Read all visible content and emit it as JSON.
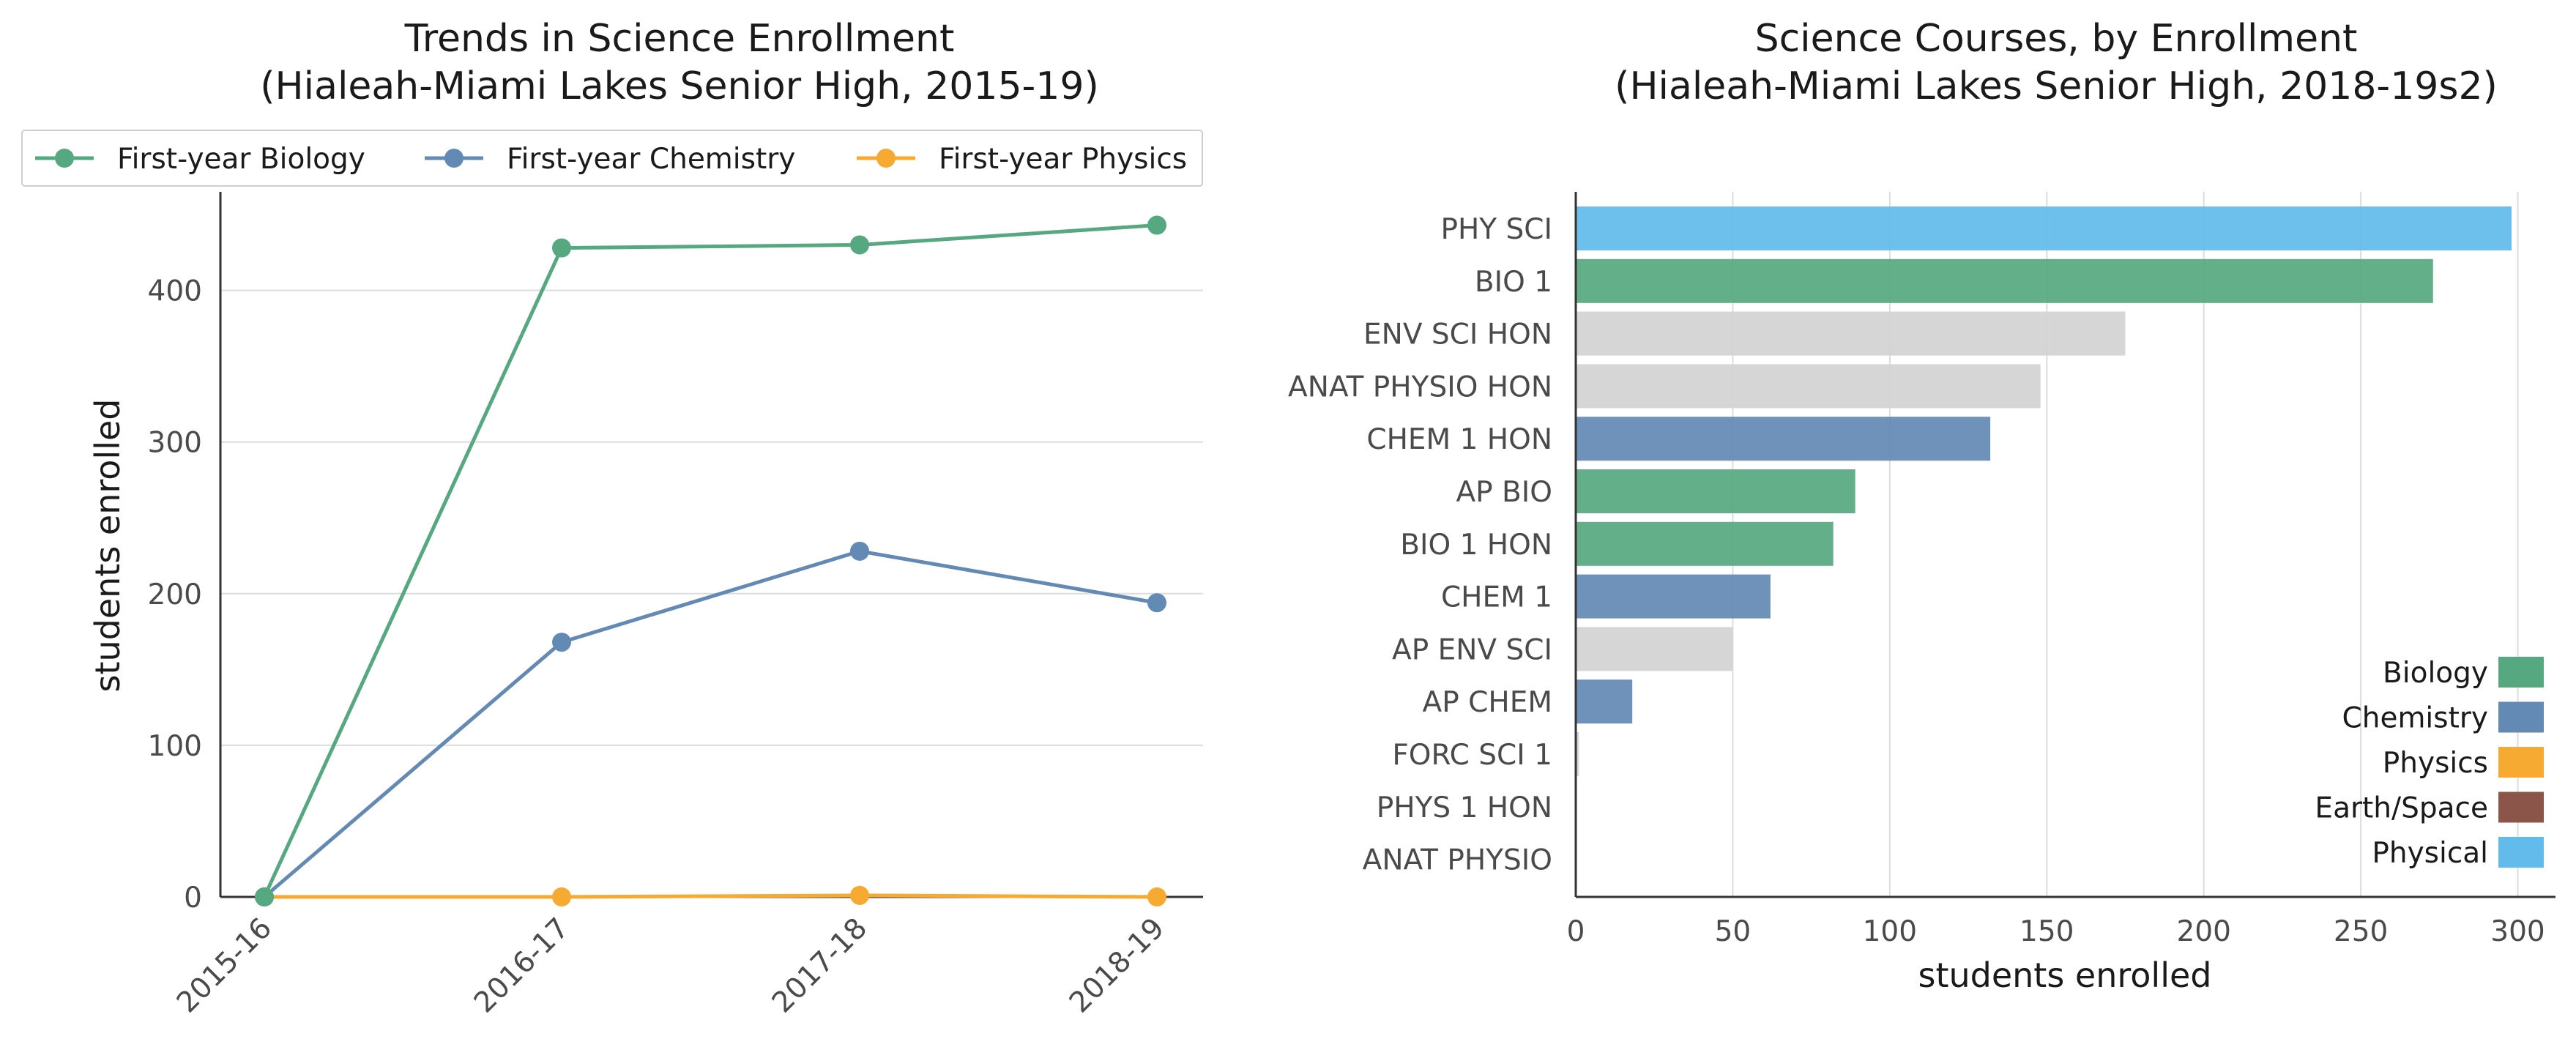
{
  "chart_data": [
    {
      "type": "line",
      "title_lines": [
        "Trends in Science Enrollment",
        "(Hialeah-Miami Lakes Senior High, 2015-19)"
      ],
      "xlabel": "",
      "ylabel": "students enrolled",
      "categories": [
        "2015-16",
        "2016-17",
        "2017-18",
        "2018-19"
      ],
      "ylim": [
        0,
        465
      ],
      "yticks": [
        0,
        100,
        200,
        300,
        400
      ],
      "grid": "horizontal",
      "legend_position": "top",
      "series": [
        {
          "name": "First-year Biology",
          "color": "#55a880",
          "values": [
            0,
            428,
            430,
            443
          ]
        },
        {
          "name": "First-year Chemistry",
          "color": "#6389b5",
          "values": [
            0,
            168,
            228,
            194
          ]
        },
        {
          "name": "First-year Physics",
          "color": "#f7aa32",
          "values": [
            0,
            0,
            1,
            0
          ]
        }
      ]
    },
    {
      "type": "bar",
      "orientation": "horizontal",
      "title_lines": [
        "Science Courses, by Enrollment",
        "(Hialeah-Miami Lakes Senior High, 2018-19s2)"
      ],
      "xlabel": "students enrolled",
      "ylabel": "",
      "xlim": [
        0,
        312
      ],
      "xticks": [
        0,
        50,
        100,
        150,
        200,
        250,
        300
      ],
      "grid": "vertical",
      "legend_position": "bottom-right",
      "categories": [
        "PHY SCI",
        "BIO 1",
        "ENV SCI HON",
        "ANAT PHYSIO HON",
        "CHEM 1 HON",
        "AP BIO",
        "BIO 1 HON",
        "CHEM 1",
        "AP ENV SCI",
        "AP CHEM",
        "FORC SCI 1",
        "PHYS 1 HON",
        "ANAT PHYSIO"
      ],
      "values": [
        298,
        273,
        175,
        148,
        132,
        89,
        82,
        62,
        50,
        18,
        1,
        0,
        0
      ],
      "bar_groups": [
        "Physical",
        "Biology",
        "Other",
        "Other",
        "Chemistry",
        "Biology",
        "Biology",
        "Chemistry",
        "Other",
        "Chemistry",
        "Other",
        "Physics",
        "Biology"
      ],
      "group_colors": {
        "Biology": "#55a880",
        "Chemistry": "#6389b5",
        "Physics": "#f7aa32",
        "Earth/Space": "#8c5549",
        "Physical": "#62bbea",
        "Other": "#d3d3d3"
      },
      "legend": [
        "Biology",
        "Chemistry",
        "Physics",
        "Earth/Space",
        "Physical"
      ]
    }
  ]
}
